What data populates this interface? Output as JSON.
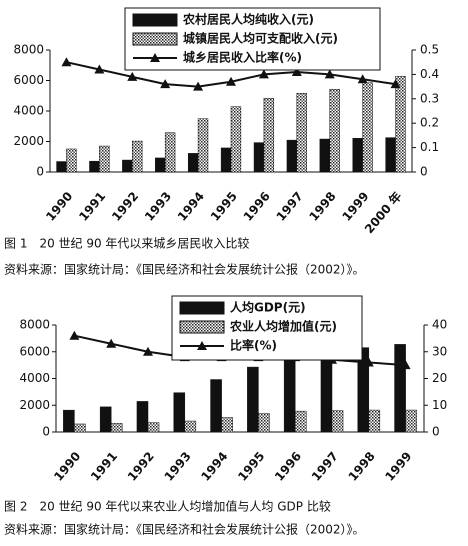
{
  "chart_data": [
    {
      "type": "bar",
      "categories": [
        "1990",
        "1991",
        "1992",
        "1993",
        "1994",
        "1995",
        "1996",
        "1997",
        "1998",
        "1999",
        "2000 年"
      ],
      "series": [
        {
          "name": "农村居民人均纯收入(元)",
          "color": "#111111",
          "values": [
            686,
            709,
            784,
            922,
            1221,
            1578,
            1926,
            2090,
            2162,
            2210,
            2253
          ]
        },
        {
          "name": "城镇居民人均可支配收入(元)",
          "color": "hatch",
          "values": [
            1510,
            1701,
            2027,
            2577,
            3496,
            4283,
            4839,
            5160,
            5425,
            5854,
            6280
          ]
        },
        {
          "name": "城乡居民收入比率(%)",
          "color": "#111111",
          "type": "line",
          "axis": "y2",
          "values": [
            0.45,
            0.42,
            0.39,
            0.36,
            0.35,
            0.37,
            0.4,
            0.41,
            0.4,
            0.38,
            0.36
          ]
        }
      ],
      "ylim": [
        0,
        8000
      ],
      "yticks": [
        0,
        2000,
        4000,
        6000,
        8000
      ],
      "y2lim": [
        0,
        0.5
      ],
      "y2ticks": [
        0,
        0.1,
        0.2,
        0.3,
        0.4,
        0.5
      ]
    },
    {
      "type": "bar",
      "categories": [
        "1990",
        "1991",
        "1992",
        "1993",
        "1994",
        "1995",
        "1996",
        "1997",
        "1998",
        "1999"
      ],
      "series": [
        {
          "name": "人均GDP(元)",
          "color": "#111111",
          "values": [
            1634,
            1879,
            2287,
            2939,
            3923,
            4854,
            5576,
            6054,
            6308,
            6551
          ]
        },
        {
          "name": "农业人均增加值(元)",
          "color": "hatch",
          "values": [
            600,
            640,
            700,
            820,
            1080,
            1380,
            1560,
            1600,
            1640,
            1640
          ]
        },
        {
          "name": "比率(%)",
          "color": "#111111",
          "type": "line",
          "axis": "y2",
          "values": [
            36,
            33,
            30,
            28,
            28,
            28,
            28,
            27,
            26,
            25
          ]
        }
      ],
      "ylim": [
        0,
        8000
      ],
      "yticks": [
        0,
        2000,
        4000,
        6000,
        8000
      ],
      "y2lim": [
        0,
        40
      ],
      "y2ticks": [
        0,
        10,
        20,
        30,
        40
      ]
    }
  ],
  "captions": [
    {
      "figure": "图 1　20 世纪 90 年代以来城乡居民收入比较",
      "source": "资料来源：国家统计局：《国民经济和社会发展统计公报（2002）》。"
    },
    {
      "figure": "图 2　20 世纪 90 年代以来农业人均增加值与人均 GDP 比较",
      "source": "资料来源：国家统计局：《国民经济和社会发展统计公报（2002）》。"
    }
  ]
}
